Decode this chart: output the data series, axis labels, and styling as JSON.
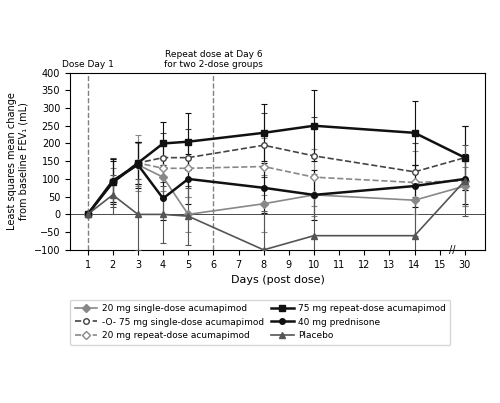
{
  "xlabel": "Days (post dose)",
  "ylabel": "Least squares mean change\nfrom baseline FEV₁ (mL)",
  "ylim": [
    -100,
    400
  ],
  "yticks": [
    -100,
    -50,
    0,
    50,
    100,
    150,
    200,
    250,
    300,
    350,
    400
  ],
  "x_days": [
    1,
    2,
    3,
    4,
    5,
    6,
    7,
    8,
    9,
    10,
    11,
    12,
    13,
    14,
    15,
    30
  ],
  "vline1_label": "Dose Day 1",
  "vline2_label": "Repeat dose at Day 6\nfor two 2-dose groups",
  "series": {
    "20mg_single": {
      "label": "20 mg single-dose acumapimod",
      "x_days": [
        1,
        2,
        3,
        4,
        5,
        8,
        10,
        14,
        30
      ],
      "y": [
        0,
        90,
        140,
        105,
        0,
        30,
        55,
        40,
        80
      ],
      "yerr_lo": [
        0,
        40,
        60,
        60,
        50,
        80,
        60,
        100,
        55
      ],
      "yerr_hi": [
        0,
        40,
        60,
        60,
        50,
        80,
        60,
        100,
        55
      ],
      "color": "#888888",
      "linestyle": "-",
      "marker": "D",
      "markersize": 4,
      "linewidth": 1.2,
      "filled": true
    },
    "75mg_single": {
      "label": "-O- 75 mg single-dose acumapimod",
      "x_days": [
        1,
        2,
        3,
        4,
        5,
        8,
        10,
        14,
        30
      ],
      "y": [
        0,
        90,
        145,
        160,
        160,
        195,
        165,
        120,
        160
      ],
      "yerr_lo": [
        0,
        70,
        60,
        70,
        80,
        90,
        110,
        80,
        90
      ],
      "yerr_hi": [
        0,
        70,
        60,
        70,
        80,
        90,
        110,
        80,
        90
      ],
      "color": "#444444",
      "linestyle": "--",
      "marker": "o",
      "markersize": 4,
      "linewidth": 1.2,
      "filled": false
    },
    "20mg_repeat": {
      "label": "20 mg repeat-dose acumapimod",
      "x_days": [
        1,
        2,
        3,
        4,
        5,
        8,
        10,
        14,
        30
      ],
      "y": [
        0,
        95,
        145,
        130,
        130,
        135,
        105,
        90,
        95
      ],
      "yerr_lo": [
        0,
        60,
        80,
        65,
        80,
        80,
        80,
        90,
        70
      ],
      "yerr_hi": [
        0,
        60,
        80,
        65,
        80,
        80,
        80,
        90,
        70
      ],
      "color": "#888888",
      "linestyle": "--",
      "marker": "D",
      "markersize": 4,
      "linewidth": 1.2,
      "filled": false
    },
    "75mg_repeat": {
      "label": "75 mg repeat-dose acumapimod",
      "x_days": [
        1,
        2,
        3,
        4,
        5,
        8,
        10,
        14,
        30
      ],
      "y": [
        0,
        90,
        145,
        200,
        205,
        230,
        250,
        230,
        160
      ],
      "yerr_lo": [
        0,
        60,
        60,
        60,
        80,
        80,
        100,
        90,
        90
      ],
      "yerr_hi": [
        0,
        60,
        60,
        60,
        80,
        80,
        100,
        90,
        90
      ],
      "color": "#111111",
      "linestyle": "-",
      "marker": "s",
      "markersize": 4,
      "linewidth": 1.8,
      "filled": true
    },
    "prednisone": {
      "label": "40 mg prednisone",
      "x_days": [
        1,
        2,
        3,
        4,
        5,
        8,
        10,
        14,
        30
      ],
      "y": [
        0,
        95,
        140,
        45,
        100,
        75,
        55,
        80,
        100
      ],
      "yerr_lo": [
        0,
        60,
        65,
        60,
        70,
        70,
        70,
        60,
        70
      ],
      "yerr_hi": [
        0,
        60,
        65,
        60,
        70,
        70,
        70,
        60,
        70
      ],
      "color": "#111111",
      "linestyle": "-",
      "marker": "o",
      "markersize": 4,
      "linewidth": 1.8,
      "filled": true
    },
    "placebo": {
      "label": "Placebo",
      "x_days": [
        1,
        2,
        3,
        4,
        5,
        8,
        10,
        14,
        30
      ],
      "y": [
        0,
        55,
        0,
        0,
        -5,
        -100,
        -60,
        -60,
        95
      ],
      "yerr_lo": [
        0,
        55,
        100,
        80,
        80,
        110,
        110,
        110,
        100
      ],
      "yerr_hi": [
        0,
        55,
        100,
        80,
        80,
        110,
        110,
        110,
        100
      ],
      "color": "#555555",
      "linestyle": "-",
      "marker": "^",
      "markersize": 4,
      "linewidth": 1.2,
      "filled": true
    }
  }
}
